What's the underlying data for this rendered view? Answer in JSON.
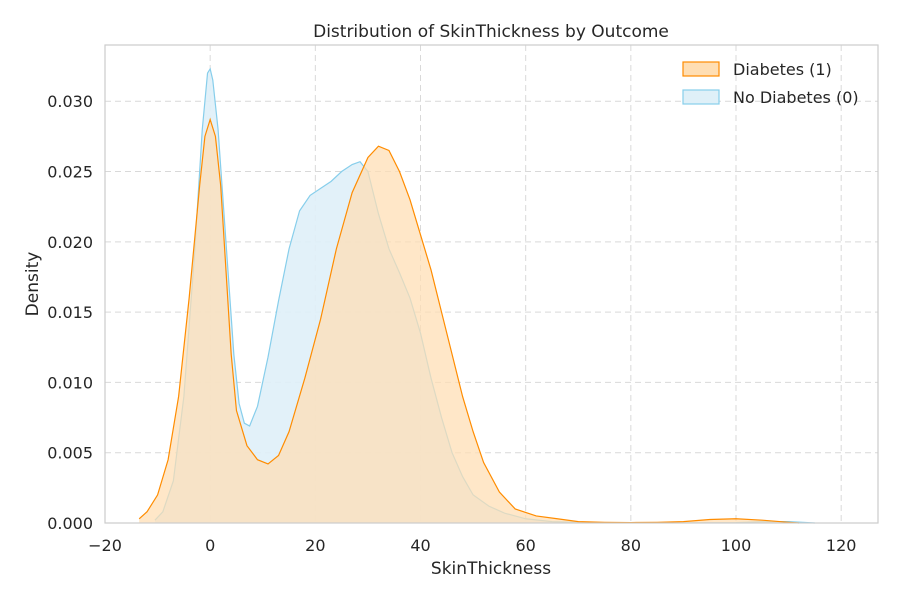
{
  "chart_data": {
    "type": "area",
    "title": "Distribution of SkinThickness by Outcome",
    "xlabel": "SkinThickness",
    "ylabel": "Density",
    "xlim": [
      -20,
      127
    ],
    "ylim": [
      0,
      0.034
    ],
    "xticks": [
      -20,
      0,
      20,
      40,
      60,
      80,
      100,
      120
    ],
    "yticks": [
      0.0,
      0.005,
      0.01,
      0.015,
      0.02,
      0.025,
      0.03
    ],
    "ytick_labels": [
      "0.000",
      "0.005",
      "0.010",
      "0.015",
      "0.020",
      "0.025",
      "0.030"
    ],
    "grid": true,
    "legend_position": "top-right",
    "series": [
      {
        "name": "Diabetes (1)",
        "stroke": "#ff8c00",
        "fill": "#ffdeb3",
        "x": [
          -13.5,
          -12,
          -10,
          -8,
          -6,
          -4,
          -2,
          -1,
          0,
          1,
          2,
          3,
          4,
          5,
          7,
          9,
          11,
          13,
          15,
          18,
          21,
          24,
          27,
          30,
          32,
          34,
          36,
          38,
          40,
          42,
          44,
          46,
          48,
          50,
          52,
          55,
          58,
          62,
          66,
          70,
          75,
          80,
          85,
          90,
          95,
          100,
          105,
          110,
          112
        ],
        "y": [
          0.0003,
          0.0008,
          0.002,
          0.0045,
          0.009,
          0.016,
          0.024,
          0.0275,
          0.0287,
          0.0275,
          0.024,
          0.018,
          0.012,
          0.008,
          0.0055,
          0.0045,
          0.0042,
          0.0048,
          0.0065,
          0.0103,
          0.0145,
          0.0195,
          0.0235,
          0.026,
          0.0268,
          0.0265,
          0.025,
          0.023,
          0.0205,
          0.018,
          0.015,
          0.012,
          0.009,
          0.0065,
          0.0043,
          0.0022,
          0.001,
          0.0005,
          0.0003,
          0.0001,
          5e-05,
          3e-05,
          5e-05,
          0.0001,
          0.00025,
          0.0003,
          0.0002,
          5e-05,
          0.0
        ]
      },
      {
        "name": "No Diabetes (0)",
        "stroke": "#87ceeb",
        "fill": "#dff0f8",
        "x": [
          -10.5,
          -9,
          -7,
          -5,
          -3,
          -1.5,
          -0.5,
          0,
          0.5,
          1.5,
          3,
          4.5,
          5.5,
          6.5,
          7.5,
          9,
          11,
          13,
          15,
          17,
          19,
          21,
          23,
          25,
          27,
          28.5,
          30,
          32,
          34,
          36,
          38,
          40,
          42,
          44,
          46,
          48,
          50,
          53,
          56,
          60,
          65,
          70,
          75,
          80,
          90,
          100,
          105,
          110,
          115
        ],
        "y": [
          0.0002,
          0.0008,
          0.003,
          0.009,
          0.019,
          0.028,
          0.032,
          0.0323,
          0.0315,
          0.028,
          0.02,
          0.012,
          0.0085,
          0.0071,
          0.0069,
          0.0083,
          0.0118,
          0.0158,
          0.0195,
          0.0222,
          0.0233,
          0.0238,
          0.0243,
          0.025,
          0.0255,
          0.0257,
          0.025,
          0.022,
          0.0195,
          0.0178,
          0.016,
          0.0135,
          0.0103,
          0.0075,
          0.005,
          0.0033,
          0.002,
          0.0012,
          0.0007,
          0.0003,
          0.0001,
          5e-05,
          2e-05,
          1e-05,
          1e-05,
          3e-05,
          0.0001,
          0.0001,
          0.0
        ]
      }
    ]
  }
}
